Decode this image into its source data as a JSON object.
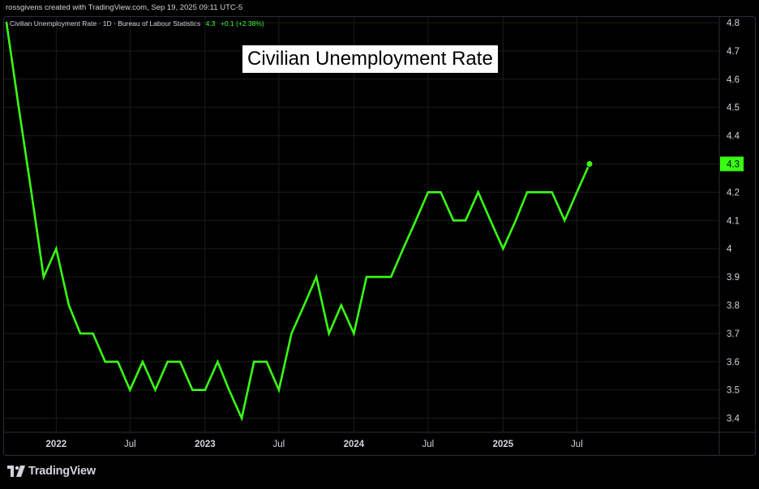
{
  "attribution": "rossgivens created with TradingView.com, Sep 19, 2025 09:11 UTC-5",
  "series_header": {
    "label": "Civilian Unemployment Rate · 1D · Bureau of Labour Statistics",
    "last": "4.3",
    "change": "+0.1 (+2.38%)"
  },
  "brand": "TradingView",
  "colors": {
    "line": "#39ff14",
    "grid": "#1c1c1c",
    "axis_text": "#d1d4dc",
    "background": "#000000"
  },
  "chart_data": {
    "type": "line",
    "title": "Civilian Unemployment Rate",
    "ylim": [
      3.35,
      4.82
    ],
    "y_ticks": [
      "4.8",
      "4.7",
      "4.6",
      "4.5",
      "4.4",
      "4.3",
      "4.2",
      "4.1",
      "4",
      "3.9",
      "3.8",
      "3.7",
      "3.6",
      "3.5",
      "3.4"
    ],
    "x_ticks": [
      {
        "label": "2022",
        "date": "2022-01-01",
        "bold": true
      },
      {
        "label": "Jul",
        "date": "2022-07-01",
        "bold": false
      },
      {
        "label": "2023",
        "date": "2023-01-01",
        "bold": true
      },
      {
        "label": "Jul",
        "date": "2023-07-01",
        "bold": false
      },
      {
        "label": "2024",
        "date": "2024-01-01",
        "bold": true
      },
      {
        "label": "Jul",
        "date": "2024-07-01",
        "bold": false
      },
      {
        "label": "2025",
        "date": "2025-01-01",
        "bold": true
      },
      {
        "label": "Jul",
        "date": "2025-07-01",
        "bold": false
      }
    ],
    "last_value_label": "4.3",
    "grid": true,
    "series": [
      {
        "x": [
          "2021-09-01",
          "2021-10-01",
          "2021-11-01",
          "2021-12-01",
          "2022-01-01",
          "2022-02-01",
          "2022-03-01",
          "2022-04-01",
          "2022-05-01",
          "2022-06-01",
          "2022-07-01",
          "2022-08-01",
          "2022-09-01",
          "2022-10-01",
          "2022-11-01",
          "2022-12-01",
          "2023-01-01",
          "2023-02-01",
          "2023-03-01",
          "2023-04-01",
          "2023-05-01",
          "2023-06-01",
          "2023-07-01",
          "2023-08-01",
          "2023-09-01",
          "2023-10-01",
          "2023-11-01",
          "2023-12-01",
          "2024-01-01",
          "2024-02-01",
          "2024-03-01",
          "2024-04-01",
          "2024-05-01",
          "2024-06-01",
          "2024-07-01",
          "2024-08-01",
          "2024-09-01",
          "2024-10-01",
          "2024-11-01",
          "2024-12-01",
          "2025-01-01",
          "2025-02-01",
          "2025-03-01",
          "2025-04-01",
          "2025-05-01",
          "2025-06-01",
          "2025-07-01",
          "2025-08-01"
        ],
        "values": [
          4.8,
          4.5,
          4.2,
          3.9,
          4.0,
          3.8,
          3.7,
          3.7,
          3.6,
          3.6,
          3.5,
          3.6,
          3.5,
          3.6,
          3.6,
          3.5,
          3.5,
          3.6,
          3.5,
          3.4,
          3.6,
          3.6,
          3.5,
          3.7,
          3.8,
          3.9,
          3.7,
          3.8,
          3.7,
          3.9,
          3.9,
          3.9,
          4.0,
          4.1,
          4.2,
          4.2,
          4.1,
          4.1,
          4.2,
          4.1,
          4.0,
          4.1,
          4.2,
          4.2,
          4.2,
          4.1,
          4.2,
          4.3
        ]
      }
    ]
  }
}
